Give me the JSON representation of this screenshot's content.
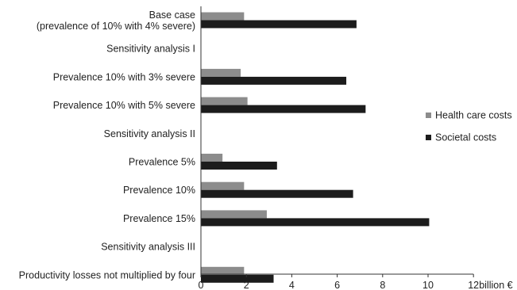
{
  "chart_data": {
    "type": "bar",
    "orientation": "horizontal",
    "categories": [
      [
        "Base case",
        "(prevalence of 10% with 4% severe)"
      ],
      [
        "Sensitivity analysis I"
      ],
      [
        "Prevalence 10% with 3% severe"
      ],
      [
        "Prevalence 10% with 5% severe"
      ],
      [
        "Sensitivity analysis II"
      ],
      [
        "Prevalence 5%"
      ],
      [
        "Prevalence 10%"
      ],
      [
        "Prevalence 15%"
      ],
      [
        "Sensitivity analysis III"
      ],
      [
        "Productivity losses not multiplied by four"
      ]
    ],
    "series": [
      {
        "name": "Health care costs",
        "color": "#8c8c8c",
        "values": [
          1.9,
          null,
          1.75,
          2.05,
          null,
          0.95,
          1.9,
          2.9,
          null,
          1.9
        ]
      },
      {
        "name": "Societal costs",
        "color": "#1c1c1c",
        "values": [
          6.85,
          null,
          6.4,
          7.25,
          null,
          3.35,
          6.7,
          10.05,
          null,
          3.2
        ]
      }
    ],
    "xlim": [
      0,
      12
    ],
    "xticks": [
      0,
      2,
      4,
      6,
      8,
      10,
      12
    ],
    "xlabel": "billion €",
    "legend_position": "right",
    "grid": false
  }
}
